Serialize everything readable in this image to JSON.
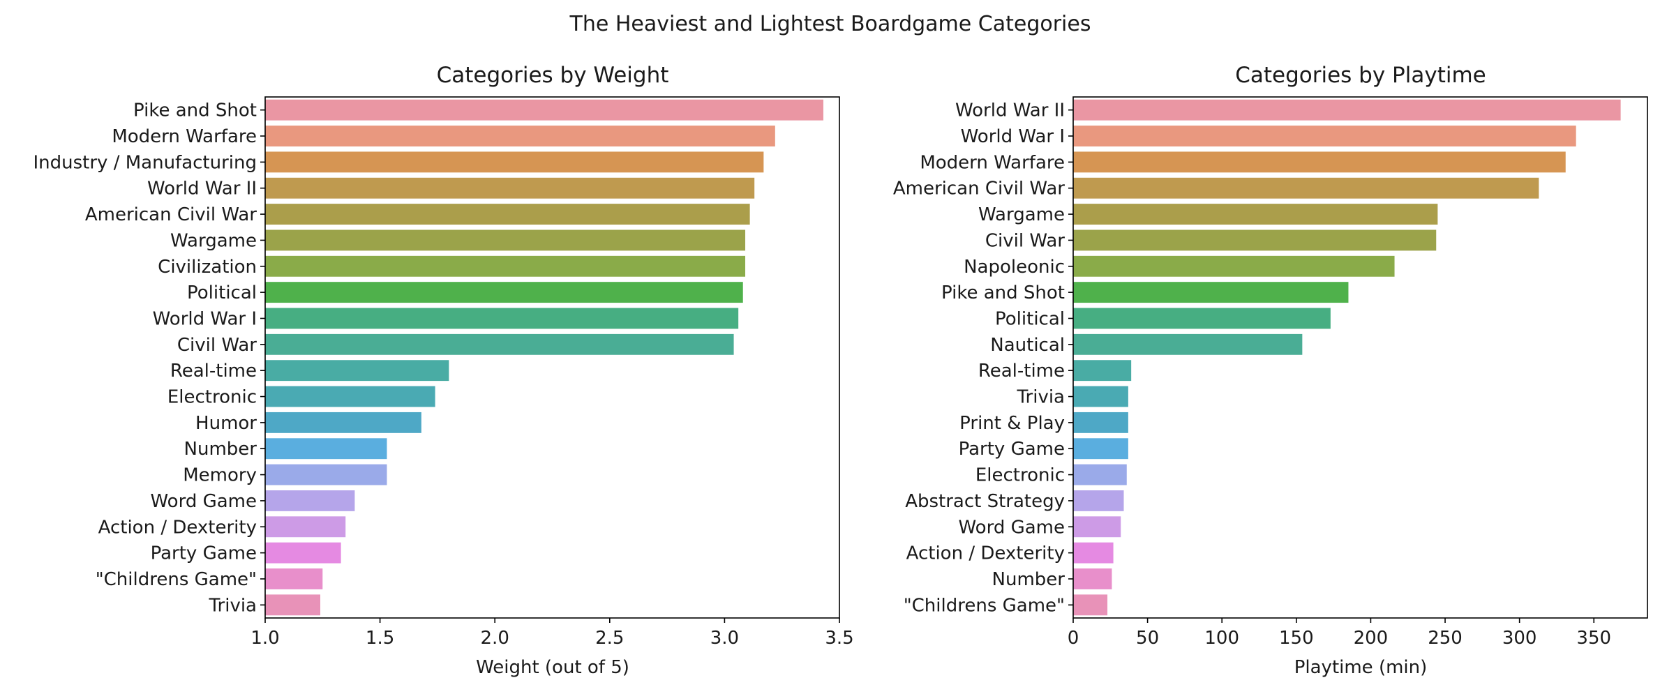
{
  "figure": {
    "suptitle": "The Heaviest and Lightest Boardgame Categories"
  },
  "chart_data": [
    {
      "type": "bar",
      "orientation": "horizontal",
      "title": "Categories by Weight",
      "xlabel": "Weight (out of 5)",
      "ylabel": "",
      "xlim": [
        1.0,
        3.5
      ],
      "xticks": [
        "1.0",
        "1.5",
        "2.0",
        "2.5",
        "3.0",
        "3.5"
      ],
      "grid": false,
      "categories": [
        "Pike and Shot",
        "Modern Warfare",
        "Industry / Manufacturing",
        "World War II",
        "American Civil War",
        "Wargame",
        "Civilization",
        "Political",
        "World War I",
        "Civil War",
        "Real-time",
        "Electronic",
        "Humor",
        "Number",
        "Memory",
        "Word Game",
        "Action / Dexterity",
        "Party Game",
        "\"Childrens Game\"",
        "Trivia"
      ],
      "values": [
        3.43,
        3.22,
        3.17,
        3.13,
        3.11,
        3.09,
        3.09,
        3.08,
        3.06,
        3.04,
        1.8,
        1.74,
        1.68,
        1.53,
        1.53,
        1.39,
        1.35,
        1.33,
        1.25,
        1.24
      ],
      "colors": [
        "#ea96a3",
        "#e9987f",
        "#d69553",
        "#bf9a4f",
        "#ab9e4b",
        "#9ba34a",
        "#8aab49",
        "#4fb14b",
        "#47ae82",
        "#4aad95",
        "#49aca4",
        "#4aaab3",
        "#4ea8c6",
        "#5aaedf",
        "#9aaae9",
        "#b5a5ea",
        "#cd9be6",
        "#e58ae2",
        "#e88fcb",
        "#e892b8"
      ]
    },
    {
      "type": "bar",
      "orientation": "horizontal",
      "title": "Categories by Playtime",
      "xlabel": "Playtime (min)",
      "ylabel": "",
      "xlim": [
        0,
        386
      ],
      "xticks": [
        "0",
        "50",
        "100",
        "150",
        "200",
        "250",
        "300",
        "350"
      ],
      "grid": false,
      "categories": [
        "World War II",
        "World War I",
        "Modern Warfare",
        "American Civil War",
        "Wargame",
        "Civil War",
        "Napoleonic",
        "Pike and Shot",
        "Political",
        "Nautical",
        "Real-time",
        "Trivia",
        "Print & Play",
        "Party Game",
        "Electronic",
        "Abstract Strategy",
        "Word Game",
        "Action / Dexterity",
        "Number",
        "\"Childrens Game\""
      ],
      "values": [
        368,
        338,
        331,
        313,
        245,
        244,
        216,
        185,
        173,
        154,
        39,
        37,
        37,
        37,
        36,
        34,
        32,
        27,
        26,
        23
      ],
      "colors": [
        "#ea96a3",
        "#e9987f",
        "#d69553",
        "#bf9a4f",
        "#ab9e4b",
        "#9ba34a",
        "#8aab49",
        "#4fb14b",
        "#47ae82",
        "#4aad95",
        "#49aca4",
        "#4aaab3",
        "#4ea8c6",
        "#5aaedf",
        "#9aaae9",
        "#b5a5ea",
        "#cd9be6",
        "#e58ae2",
        "#e88fcb",
        "#e892b8"
      ]
    }
  ]
}
